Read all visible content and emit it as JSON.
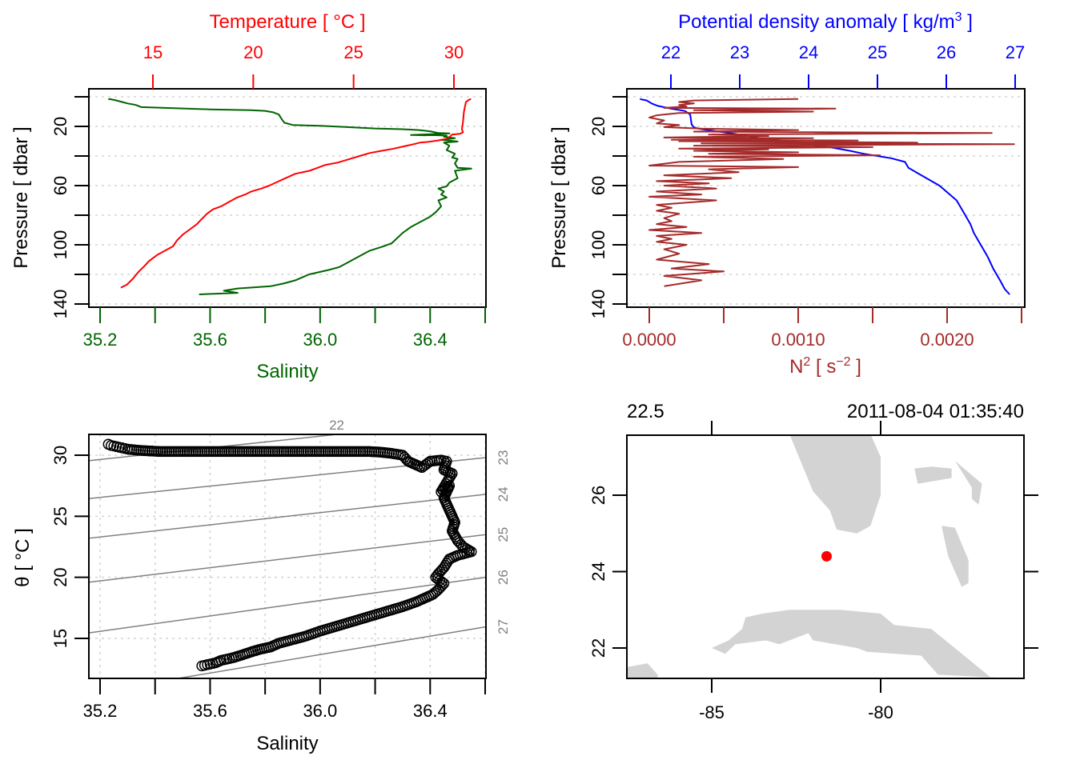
{
  "chart_data": [
    {
      "id": "profile-ts",
      "type": "line",
      "ylabel": "Pressure [ dbar ]",
      "ylim": [
        0,
        140
      ],
      "y_reversed": true,
      "yticks": [
        20,
        60,
        100,
        140
      ],
      "yticks_minor": [
        0,
        40,
        80,
        120
      ],
      "grid": true,
      "xaxis_bottom": {
        "label": "Salinity",
        "color": "#006400",
        "lim": [
          35.13,
          36.6
        ],
        "ticks": [
          35.2,
          35.6,
          36.0,
          36.4
        ],
        "tick_labels": [
          "35.2",
          "35.6",
          "36.0",
          "36.4"
        ],
        "minor": [
          35.4,
          35.8,
          36.2,
          36.6
        ]
      },
      "xaxis_top": {
        "label": "Temperature [ °C ]",
        "color": "#ff0000",
        "lim": [
          12.96,
          31.65
        ],
        "ticks": [
          15,
          20,
          25,
          30
        ],
        "tick_labels": [
          "15",
          "20",
          "25",
          "30"
        ]
      },
      "series": [
        {
          "name": "Salinity",
          "axis": "bottom",
          "color": "#006400",
          "x": [
            35.23,
            35.24,
            35.26,
            35.28,
            35.3,
            35.33,
            35.35,
            35.6,
            35.75,
            35.8,
            35.83,
            35.85,
            35.86,
            35.87,
            35.9,
            36.0,
            36.1,
            36.2,
            36.3,
            36.36,
            36.4,
            36.43,
            36.47,
            36.33,
            36.38,
            36.41,
            36.46,
            36.45,
            36.49,
            36.44,
            36.5,
            36.45,
            36.47,
            36.46,
            36.49,
            36.48,
            36.5,
            36.49,
            36.5,
            36.55,
            36.49,
            36.5,
            36.47,
            36.46,
            36.43,
            36.45,
            36.44,
            36.46,
            36.43,
            36.44,
            36.42,
            36.4,
            36.37,
            36.33,
            36.3,
            36.26,
            36.23,
            36.18,
            36.14,
            36.1,
            36.07,
            36.03,
            35.96,
            35.91,
            35.87,
            35.82,
            35.7,
            35.65,
            35.7,
            35.56
          ],
          "y": [
            1.5,
            1.7,
            2.5,
            3.5,
            4.5,
            5.5,
            7.0,
            8.5,
            9.0,
            9.5,
            10.5,
            12.0,
            15.0,
            17.5,
            19.0,
            19.6,
            20.5,
            21.4,
            21.9,
            22.5,
            23.3,
            24.5,
            24.7,
            25.8,
            26.0,
            25.9,
            26.2,
            27.0,
            28.0,
            29.0,
            30.2,
            31.0,
            33.0,
            36.0,
            38.5,
            41.0,
            42.0,
            45.0,
            48.0,
            48.5,
            50.0,
            55.0,
            58.0,
            60.5,
            62.0,
            64.0,
            66.0,
            68.0,
            70.0,
            74.0,
            78.0,
            81.0,
            84.0,
            88.0,
            92.0,
            99.0,
            101.0,
            104.0,
            108.0,
            112.0,
            115.0,
            117.0,
            120.0,
            124.0,
            126.0,
            128.0,
            129.5,
            131.0,
            132.5,
            133.5
          ]
        },
        {
          "name": "Temperature",
          "axis": "top",
          "color": "#ff0000",
          "x": [
            30.85,
            30.75,
            30.6,
            30.5,
            30.45,
            30.4,
            30.45,
            30.3,
            29.9,
            29.8,
            29.6,
            29.2,
            28.7,
            28.3,
            28.0,
            27.5,
            27.0,
            26.4,
            25.8,
            25.3,
            24.7,
            24.2,
            23.6,
            23.2,
            22.8,
            22.1,
            21.6,
            21.2,
            20.8,
            20.4,
            19.9,
            19.6,
            19.2,
            18.8,
            18.4,
            18.0,
            17.7,
            17.4,
            17.2,
            16.8,
            16.5,
            16.2,
            16.0,
            15.6,
            15.2,
            14.8,
            14.6,
            14.3,
            14.0,
            13.7,
            13.4
          ],
          "y": [
            1.5,
            2.0,
            3.5,
            10.0,
            17.0,
            22.0,
            24.0,
            25.0,
            25.5,
            27.0,
            28.5,
            29.5,
            30.5,
            31.0,
            32.0,
            33.5,
            35.0,
            36.5,
            38.0,
            40.0,
            42.5,
            44.5,
            46.0,
            48.0,
            50.0,
            52.0,
            55.0,
            57.5,
            60.0,
            62.0,
            64.0,
            66.0,
            68.0,
            71.0,
            74.0,
            76.0,
            79.0,
            83.0,
            86.0,
            90.0,
            93.0,
            97.0,
            101.0,
            104.0,
            107.0,
            111.0,
            114.0,
            118.0,
            123.0,
            127.0,
            129.0
          ]
        }
      ]
    },
    {
      "id": "profile-density",
      "type": "line",
      "ylabel": "Pressure [ dbar ]",
      "ylim": [
        0,
        140
      ],
      "y_reversed": true,
      "yticks": [
        20,
        60,
        100,
        140
      ],
      "yticks_minor": [
        0,
        40,
        80,
        120
      ],
      "grid": true,
      "xaxis_bottom": {
        "label": "N² [ s⁻² ]",
        "color": "#a52a2a",
        "lim": [
          -0.00016,
          0.0025
        ],
        "ticks": [
          0,
          0.001,
          0.002
        ],
        "tick_labels": [
          "0.0000",
          "0.0010",
          "0.0020"
        ],
        "minor": [
          0.0005,
          0.0015,
          0.0025
        ]
      },
      "xaxis_top": {
        "label": "Potential density anomaly [ kg/m³ ]",
        "color": "#0000ff",
        "lim": [
          21.48,
          27.14
        ],
        "ticks": [
          22,
          23,
          24,
          25,
          26,
          27
        ],
        "tick_labels": [
          "22",
          "23",
          "24",
          "25",
          "26",
          "27"
        ]
      },
      "series": [
        {
          "name": "Potential density anomaly",
          "axis": "top",
          "color": "#0000ff",
          "x": [
            21.55,
            21.65,
            21.72,
            21.8,
            22.0,
            22.2,
            22.28,
            22.3,
            22.33,
            22.4,
            22.7,
            23.0,
            23.3,
            23.7,
            24.0,
            24.3,
            24.6,
            24.8,
            25.0,
            25.2,
            25.4,
            25.45,
            25.6,
            25.75,
            25.9,
            26.0,
            26.15,
            26.25,
            26.35,
            26.4,
            26.5,
            26.6,
            26.68,
            26.78,
            26.85,
            26.92
          ],
          "y": [
            1.5,
            2.5,
            4.5,
            6.0,
            8.0,
            9.5,
            12.0,
            18.5,
            20.5,
            21.5,
            23.5,
            25.5,
            28.0,
            30.0,
            32.0,
            34.0,
            36.5,
            38.5,
            40.0,
            41.5,
            44.0,
            48.0,
            52.0,
            56.0,
            60.0,
            64.0,
            70.0,
            78.0,
            86.0,
            92.0,
            100.0,
            108.0,
            116.0,
            124.0,
            130.0,
            133.5
          ]
        },
        {
          "name": "N²",
          "axis": "bottom",
          "color": "#a52a2a",
          "x": [
            0.001,
            0.0003,
            0.0002,
            0.0003,
            0.0002,
            0.00025,
            0.0001,
            0.00125,
            0.0003,
            0.0011,
            0.0002,
            5e-05,
            0.0,
            0.0001,
            5e-05,
            0.0002,
            0.0001,
            0.00035,
            0.001,
            0.0003,
            0.0023,
            0.0004,
            0.0008,
            0.0001,
            0.0011,
            0.00015,
            0.0014,
            0.0002,
            0.0018,
            0.00035,
            0.00245,
            0.0003,
            0.0015,
            0.0002,
            0.0008,
            0.0003,
            0.001,
            0.0004,
            0.00155,
            0.0003,
            0.0009,
            0.0002,
            0.0,
            0.001,
            0.0004,
            0.0006,
            0.0001,
            0.00055,
            5e-05,
            0.0004,
            0.0001,
            0.00045,
            5e-05,
            0.00035,
            0.0,
            0.00045,
            5e-05,
            0.00015,
            5e-05,
            0.0002,
            0.0001,
            0.00015,
            5e-05,
            0.00025,
            0.0,
            0.00035,
            5e-05,
            0.00015,
            5e-05,
            0.00025,
            0.0001,
            0.0002,
            5e-05,
            0.0004,
            0.00015,
            0.0005,
            0.0001,
            0.00035,
            0.0001
          ],
          "y": [
            1.5,
            2.5,
            3.5,
            4.5,
            5.5,
            6.5,
            7.5,
            8.0,
            9.0,
            10.0,
            11.0,
            12.5,
            14.0,
            16.0,
            18.0,
            19.0,
            20.5,
            21.5,
            22.5,
            23.5,
            24.5,
            25.5,
            26.5,
            27.5,
            28.0,
            29.0,
            29.5,
            30.0,
            31.0,
            31.5,
            32.0,
            33.0,
            34.0,
            35.0,
            35.5,
            36.5,
            37.5,
            38.5,
            39.5,
            40.5,
            42.0,
            44.0,
            46.5,
            47.5,
            49.0,
            51.0,
            53.0,
            55.0,
            57.0,
            58.5,
            60.0,
            62.0,
            64.0,
            66.0,
            67.5,
            70.0,
            73.0,
            75.0,
            77.0,
            79.0,
            82.0,
            84.0,
            86.0,
            88.0,
            90.0,
            92.0,
            94.0,
            96.0,
            98.0,
            100.0,
            103.0,
            106.0,
            110.0,
            113.0,
            116.0,
            118.0,
            121.0,
            124.0,
            128.0
          ]
        }
      ]
    },
    {
      "id": "ts-diagram",
      "type": "scatter",
      "xlabel": "Salinity",
      "ylabel": "θ [ °C ]",
      "xlim": [
        35.13,
        36.6
      ],
      "ylim": [
        11.7,
        31.7
      ],
      "xticks": [
        35.2,
        35.6,
        36.0,
        36.4
      ],
      "xtick_labels": [
        "35.2",
        "35.6",
        "36.0",
        "36.4"
      ],
      "xticks_minor": [
        35.4,
        35.8,
        36.2,
        36.6
      ],
      "yticks": [
        15,
        20,
        25,
        30
      ],
      "grid": true,
      "isopycnals": [
        {
          "label": "22",
          "y_at_xmin": 29.55,
          "y_at_xmax": 33.0
        },
        {
          "label": "23",
          "y_at_xmin": 26.45,
          "y_at_xmax": 29.8
        },
        {
          "label": "24",
          "y_at_xmin": 23.2,
          "y_at_xmax": 26.8
        },
        {
          "label": "25",
          "y_at_xmin": 19.6,
          "y_at_xmax": 23.5
        },
        {
          "label": "26",
          "y_at_xmin": 15.45,
          "y_at_xmax": 20.0
        },
        {
          "label": "27",
          "y_at_xmin": 10.5,
          "y_at_xmax": 15.95
        }
      ],
      "points": {
        "S": [
          35.23,
          35.24,
          35.26,
          35.28,
          35.3,
          35.34,
          35.38,
          35.42,
          35.46,
          35.5,
          35.54,
          35.58,
          35.62,
          35.66,
          35.7,
          35.74,
          35.78,
          35.82,
          35.86,
          35.9,
          35.94,
          35.98,
          36.02,
          36.06,
          36.1,
          36.14,
          36.18,
          36.22,
          36.26,
          36.3,
          36.32,
          36.34,
          36.37,
          36.4,
          36.44,
          36.46,
          36.45,
          36.48,
          36.44,
          36.47,
          36.45,
          36.47,
          36.48,
          36.49,
          36.48,
          36.5,
          36.52,
          36.55,
          36.5,
          36.47,
          36.45,
          36.43,
          36.42,
          36.45,
          36.43,
          36.41,
          36.38,
          36.35,
          36.3,
          36.24,
          36.18,
          36.12,
          36.06,
          36.0,
          35.95,
          35.9,
          35.85,
          35.82,
          35.78,
          35.75,
          35.71,
          35.68,
          35.66,
          35.64,
          35.62,
          35.6,
          35.58,
          35.56
        ],
        "T": [
          30.9,
          30.8,
          30.7,
          30.6,
          30.5,
          30.4,
          30.35,
          30.3,
          30.3,
          30.3,
          30.3,
          30.3,
          30.3,
          30.3,
          30.3,
          30.3,
          30.3,
          30.3,
          30.3,
          30.3,
          30.3,
          30.3,
          30.3,
          30.3,
          30.3,
          30.3,
          30.3,
          30.25,
          30.15,
          30.0,
          29.5,
          29.3,
          29.0,
          29.5,
          29.6,
          29.5,
          28.8,
          28.5,
          27.0,
          27.5,
          26.5,
          25.5,
          25.0,
          24.5,
          23.8,
          23.0,
          22.5,
          22.1,
          21.8,
          21.5,
          20.8,
          20.3,
          20.0,
          19.5,
          19.0,
          18.6,
          18.3,
          18.0,
          17.6,
          17.2,
          16.8,
          16.4,
          16.0,
          15.6,
          15.2,
          14.9,
          14.6,
          14.3,
          14.1,
          13.9,
          13.6,
          13.4,
          13.3,
          13.2,
          13.0,
          12.9,
          12.8,
          12.7
        ]
      },
      "point_color": "#000000"
    },
    {
      "id": "station-map",
      "type": "map",
      "xlim": [
        -87.5,
        -75.7
      ],
      "ylim": [
        21.2,
        27.6
      ],
      "xticks": [
        -85,
        -80
      ],
      "xtick_labels": [
        "-85",
        "-80"
      ],
      "yticks": [
        22,
        24,
        26
      ],
      "ytick_labels": [
        "22",
        "24",
        "26"
      ],
      "top_left_label": "22.5",
      "top_right_label": "2011-08-04 01:35:40",
      "land_color": "#d3d3d3",
      "station": {
        "lon": -81.6,
        "lat": 24.4,
        "color": "#ff0000"
      },
      "coastlines": [
        {
          "name": "florida",
          "lon": [
            -82.7,
            -80.3,
            -80.0,
            -80.0,
            -80.3,
            -80.7,
            -81.3,
            -81.5,
            -82.0,
            -82.7
          ],
          "lat": [
            27.6,
            27.6,
            27.0,
            26.0,
            25.2,
            25.0,
            25.1,
            25.6,
            26.1,
            27.6
          ]
        },
        {
          "name": "cuba",
          "lon": [
            -85.0,
            -84.5,
            -84.1,
            -84.0,
            -83.5,
            -82.7,
            -82.5,
            -81.2,
            -80.0,
            -79.6,
            -78.5,
            -76.7,
            -76.0,
            -78.3,
            -78.8,
            -80.4,
            -80.7,
            -82.0,
            -82.3,
            -81.8,
            -83.0,
            -83.4,
            -84.3,
            -84.6,
            -85.0
          ],
          "lat": [
            22.0,
            22.2,
            22.5,
            22.8,
            22.9,
            23.0,
            23.0,
            23.0,
            22.9,
            22.6,
            22.5,
            21.2,
            21.2,
            21.3,
            21.8,
            21.9,
            22.0,
            22.2,
            22.6,
            22.5,
            22.1,
            22.2,
            22.1,
            21.85,
            22.0
          ]
        },
        {
          "name": "isle-of-youth",
          "lon": [
            -87.5,
            -86.9,
            -86.6,
            -86.6,
            -87.5
          ],
          "lat": [
            21.5,
            21.6,
            21.3,
            21.2,
            21.2
          ]
        },
        {
          "name": "andros",
          "lon": [
            -78.2,
            -77.8,
            -77.4,
            -77.4,
            -77.6,
            -77.8,
            -78.0,
            -78.2
          ],
          "lat": [
            25.2,
            25.15,
            24.3,
            23.7,
            23.6,
            24.0,
            24.4,
            25.2
          ]
        },
        {
          "name": "grand-bahama",
          "lon": [
            -79.0,
            -78.5,
            -77.9,
            -77.9,
            -78.9,
            -79.0
          ],
          "lat": [
            26.7,
            26.75,
            26.7,
            26.45,
            26.3,
            26.7
          ]
        },
        {
          "name": "abaco",
          "lon": [
            -77.8,
            -77.0,
            -77.1,
            -77.3,
            -77.3,
            -77.8
          ],
          "lat": [
            26.9,
            26.3,
            25.75,
            25.9,
            26.2,
            26.9
          ]
        }
      ]
    }
  ]
}
